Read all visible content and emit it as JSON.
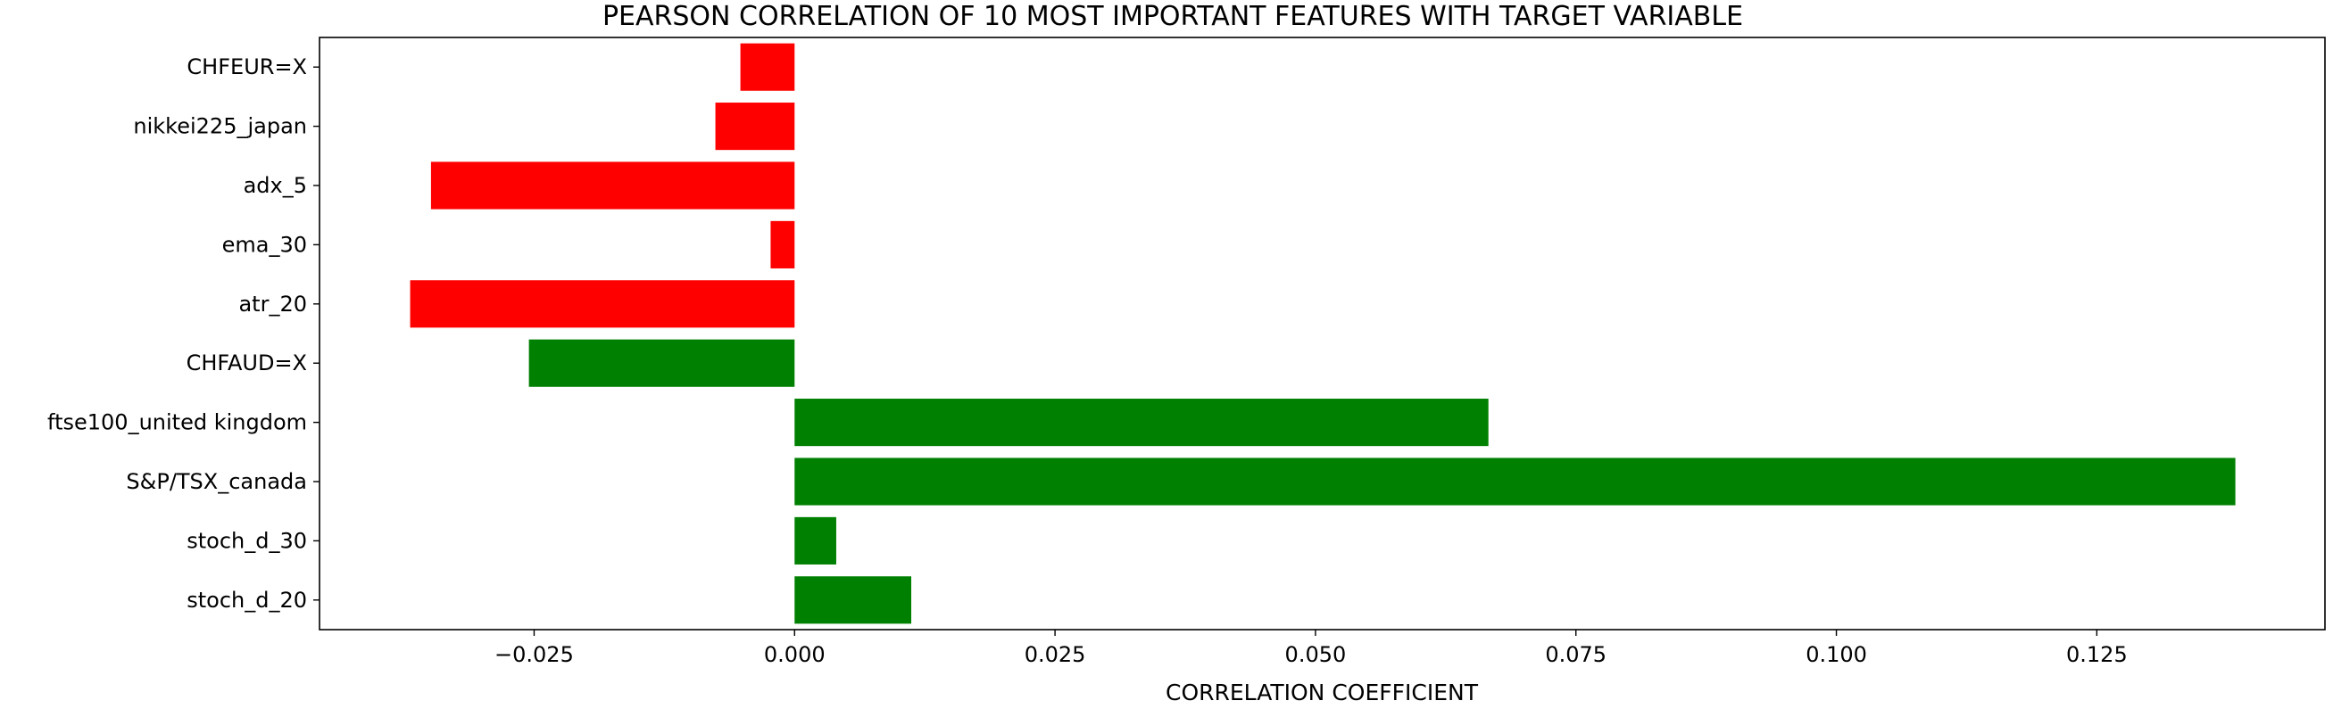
{
  "chart_data": {
    "type": "bar",
    "orientation": "horizontal",
    "title": "PEARSON CORRELATION OF 10 MOST IMPORTANT FEATURES WITH TARGET VARIABLE",
    "xlabel": "CORRELATION COEFFICIENT",
    "ylabel": "",
    "xlim": [
      -0.0456,
      0.1469
    ],
    "xticks": [
      -0.025,
      0.0,
      0.025,
      0.05,
      0.075,
      0.1,
      0.125
    ],
    "xtick_labels": [
      "−0.025",
      "0.000",
      "0.025",
      "0.050",
      "0.075",
      "0.100",
      "0.125"
    ],
    "grid": false,
    "legend": "none",
    "categories": [
      "CHFEUR=X",
      "nikkei225_japan",
      "adx_5",
      "ema_30",
      "atr_20",
      "CHFAUD=X",
      "ftse100_united kingdom",
      "S&P/TSX_canada",
      "stoch_d_30",
      "stoch_d_20"
    ],
    "values": [
      -0.0052,
      -0.0076,
      -0.0349,
      -0.0023,
      -0.0369,
      -0.0255,
      0.0666,
      0.1383,
      0.004,
      0.0112
    ],
    "colors": [
      "#ff0000",
      "#ff0000",
      "#ff0000",
      "#ff0000",
      "#ff0000",
      "#008000",
      "#008000",
      "#008000",
      "#008000",
      "#008000"
    ]
  }
}
